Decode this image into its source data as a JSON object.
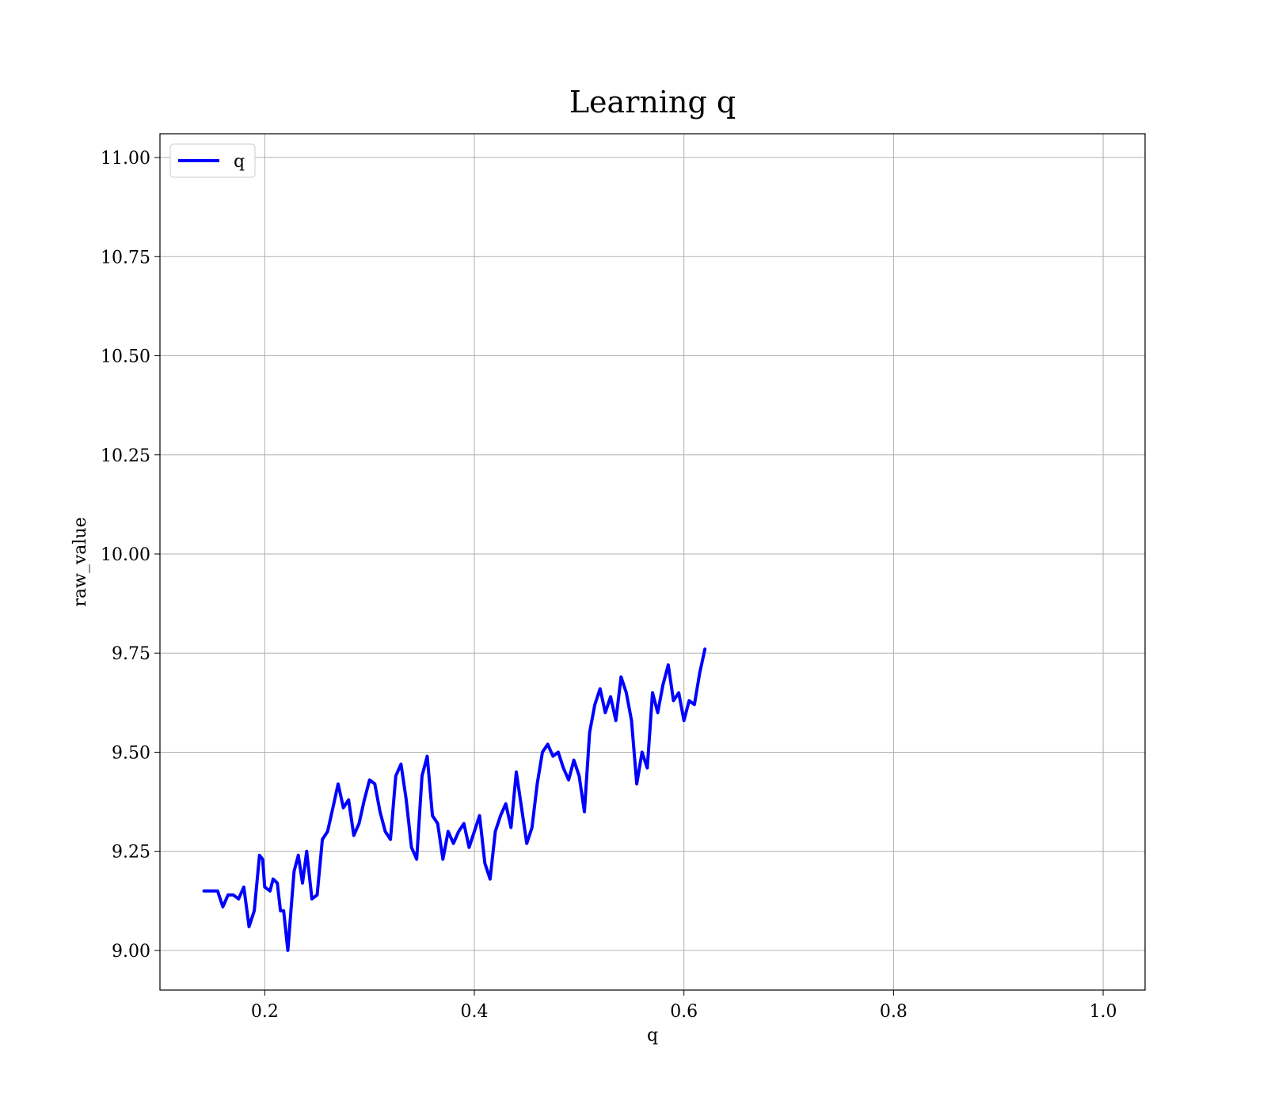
{
  "chart_data": {
    "type": "line",
    "title": "Learning q",
    "xlabel": "q",
    "ylabel": "raw_value",
    "xlim": [
      0.1,
      1.04
    ],
    "ylim": [
      8.9,
      11.06
    ],
    "x_ticks": [
      0.2,
      0.4,
      0.6,
      0.8,
      1.0
    ],
    "x_tick_labels": [
      "0.2",
      "0.4",
      "0.6",
      "0.8",
      "1.0"
    ],
    "y_ticks": [
      9.0,
      9.25,
      9.5,
      9.75,
      10.0,
      10.25,
      10.5,
      10.75,
      11.0
    ],
    "y_tick_labels": [
      "9.00",
      "9.25",
      "9.50",
      "9.75",
      "10.00",
      "10.25",
      "10.50",
      "10.75",
      "11.00"
    ],
    "grid": true,
    "legend": {
      "placement": "top-left",
      "entries": [
        "q"
      ]
    },
    "series": [
      {
        "name": "q",
        "color": "#0000ff",
        "points": [
          [
            0.142,
            9.15
          ],
          [
            0.15,
            9.15
          ],
          [
            0.155,
            9.15
          ],
          [
            0.16,
            9.11
          ],
          [
            0.165,
            9.14
          ],
          [
            0.17,
            9.14
          ],
          [
            0.175,
            9.13
          ],
          [
            0.18,
            9.16
          ],
          [
            0.185,
            9.06
          ],
          [
            0.19,
            9.1
          ],
          [
            0.195,
            9.24
          ],
          [
            0.198,
            9.23
          ],
          [
            0.2,
            9.16
          ],
          [
            0.205,
            9.15
          ],
          [
            0.208,
            9.18
          ],
          [
            0.212,
            9.17
          ],
          [
            0.215,
            9.1
          ],
          [
            0.218,
            9.1
          ],
          [
            0.222,
            9.0
          ],
          [
            0.225,
            9.1
          ],
          [
            0.228,
            9.2
          ],
          [
            0.232,
            9.24
          ],
          [
            0.236,
            9.17
          ],
          [
            0.24,
            9.25
          ],
          [
            0.245,
            9.13
          ],
          [
            0.25,
            9.14
          ],
          [
            0.255,
            9.28
          ],
          [
            0.26,
            9.3
          ],
          [
            0.265,
            9.36
          ],
          [
            0.27,
            9.42
          ],
          [
            0.275,
            9.36
          ],
          [
            0.28,
            9.38
          ],
          [
            0.285,
            9.29
          ],
          [
            0.29,
            9.32
          ],
          [
            0.295,
            9.38
          ],
          [
            0.3,
            9.43
          ],
          [
            0.305,
            9.42
          ],
          [
            0.31,
            9.35
          ],
          [
            0.315,
            9.3
          ],
          [
            0.32,
            9.28
          ],
          [
            0.325,
            9.44
          ],
          [
            0.33,
            9.47
          ],
          [
            0.335,
            9.38
          ],
          [
            0.34,
            9.26
          ],
          [
            0.345,
            9.23
          ],
          [
            0.35,
            9.44
          ],
          [
            0.355,
            9.49
          ],
          [
            0.36,
            9.34
          ],
          [
            0.365,
            9.32
          ],
          [
            0.37,
            9.23
          ],
          [
            0.375,
            9.3
          ],
          [
            0.38,
            9.27
          ],
          [
            0.385,
            9.3
          ],
          [
            0.39,
            9.32
          ],
          [
            0.395,
            9.26
          ],
          [
            0.4,
            9.3
          ],
          [
            0.405,
            9.34
          ],
          [
            0.41,
            9.22
          ],
          [
            0.415,
            9.18
          ],
          [
            0.42,
            9.3
          ],
          [
            0.425,
            9.34
          ],
          [
            0.43,
            9.37
          ],
          [
            0.435,
            9.31
          ],
          [
            0.44,
            9.45
          ],
          [
            0.445,
            9.36
          ],
          [
            0.45,
            9.27
          ],
          [
            0.455,
            9.31
          ],
          [
            0.46,
            9.42
          ],
          [
            0.465,
            9.5
          ],
          [
            0.47,
            9.52
          ],
          [
            0.475,
            9.49
          ],
          [
            0.48,
            9.5
          ],
          [
            0.485,
            9.46
          ],
          [
            0.49,
            9.43
          ],
          [
            0.495,
            9.48
          ],
          [
            0.5,
            9.44
          ],
          [
            0.505,
            9.35
          ],
          [
            0.51,
            9.55
          ],
          [
            0.515,
            9.62
          ],
          [
            0.52,
            9.66
          ],
          [
            0.525,
            9.6
          ],
          [
            0.53,
            9.64
          ],
          [
            0.535,
            9.58
          ],
          [
            0.54,
            9.69
          ],
          [
            0.545,
            9.65
          ],
          [
            0.55,
            9.58
          ],
          [
            0.555,
            9.42
          ],
          [
            0.56,
            9.5
          ],
          [
            0.565,
            9.46
          ],
          [
            0.57,
            9.65
          ],
          [
            0.575,
            9.6
          ],
          [
            0.58,
            9.67
          ],
          [
            0.585,
            9.72
          ],
          [
            0.59,
            9.63
          ],
          [
            0.595,
            9.65
          ],
          [
            0.6,
            9.58
          ],
          [
            0.605,
            9.63
          ],
          [
            0.61,
            9.62
          ],
          [
            0.615,
            9.7
          ],
          [
            0.62,
            9.76
          ]
        ]
      }
    ]
  }
}
